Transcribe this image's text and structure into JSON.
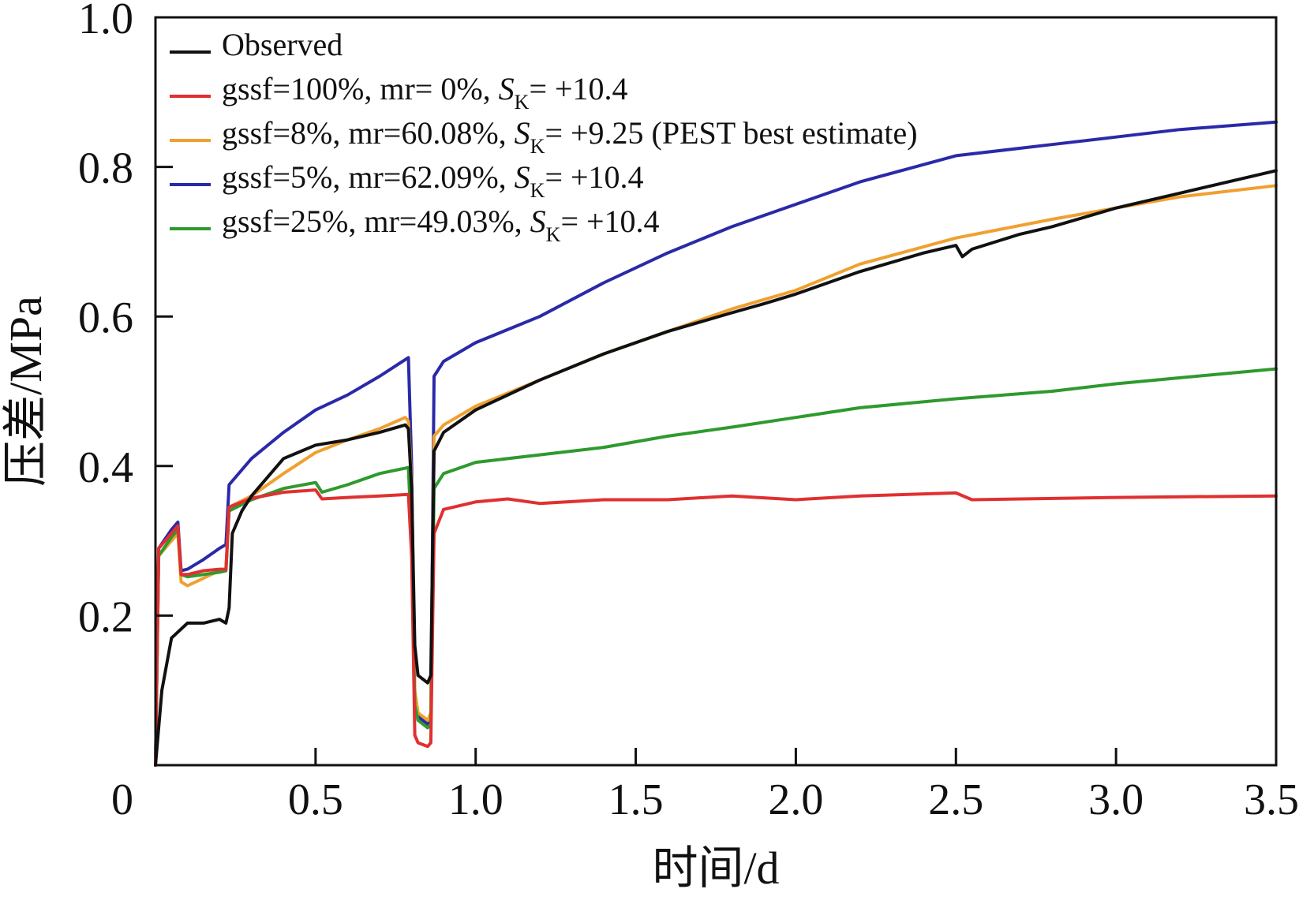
{
  "chart_data": {
    "type": "line",
    "title": "",
    "xlabel": "时间/d",
    "ylabel": "压差/MPa",
    "xlim": [
      0,
      3.5
    ],
    "ylim": [
      0,
      1.0
    ],
    "x_ticks": [
      0,
      0.5,
      1.0,
      1.5,
      2.0,
      2.5,
      3.0,
      3.5
    ],
    "x_tick_labels": [
      "0",
      "0.5",
      "1.0",
      "1.5",
      "2.0",
      "2.5",
      "3.0",
      "3.5"
    ],
    "y_ticks": [
      0.2,
      0.4,
      0.6,
      0.8,
      1.0
    ],
    "y_tick_labels": [
      "0.2",
      "0.4",
      "0.6",
      "0.8",
      "1.0"
    ],
    "grid": false,
    "legend_position": "top-left",
    "series": [
      {
        "name": "Observed",
        "legend": {
          "pre": "Observed",
          "sk_symbol": "",
          "sk_sub": "",
          "post": ""
        },
        "color": "#111111",
        "points": [
          [
            0.0,
            0.0
          ],
          [
            0.02,
            0.1
          ],
          [
            0.05,
            0.17
          ],
          [
            0.1,
            0.19
          ],
          [
            0.15,
            0.19
          ],
          [
            0.2,
            0.195
          ],
          [
            0.22,
            0.19
          ],
          [
            0.23,
            0.21
          ],
          [
            0.24,
            0.31
          ],
          [
            0.27,
            0.34
          ],
          [
            0.3,
            0.36
          ],
          [
            0.4,
            0.41
          ],
          [
            0.5,
            0.428
          ],
          [
            0.6,
            0.435
          ],
          [
            0.7,
            0.445
          ],
          [
            0.78,
            0.455
          ],
          [
            0.79,
            0.45
          ],
          [
            0.8,
            0.37
          ],
          [
            0.81,
            0.16
          ],
          [
            0.82,
            0.12
          ],
          [
            0.85,
            0.11
          ],
          [
            0.86,
            0.12
          ],
          [
            0.87,
            0.42
          ],
          [
            0.9,
            0.445
          ],
          [
            1.0,
            0.475
          ],
          [
            1.2,
            0.515
          ],
          [
            1.4,
            0.55
          ],
          [
            1.6,
            0.58
          ],
          [
            1.8,
            0.605
          ],
          [
            1.9,
            0.617
          ],
          [
            2.0,
            0.63
          ],
          [
            2.2,
            0.66
          ],
          [
            2.4,
            0.685
          ],
          [
            2.5,
            0.695
          ],
          [
            2.52,
            0.68
          ],
          [
            2.55,
            0.69
          ],
          [
            2.7,
            0.71
          ],
          [
            2.8,
            0.72
          ],
          [
            3.0,
            0.745
          ],
          [
            3.2,
            0.765
          ],
          [
            3.4,
            0.785
          ],
          [
            3.5,
            0.795
          ]
        ]
      },
      {
        "name": "gssf=100%, mr= 0%, SK= +10.4",
        "legend": {
          "pre": "gssf=100%, mr= 0%, ",
          "sk_symbol": "S",
          "sk_sub": "K",
          "post": "= +10.4"
        },
        "color": "#e03030",
        "points": [
          [
            0.0,
            0.0
          ],
          [
            0.01,
            0.29
          ],
          [
            0.05,
            0.31
          ],
          [
            0.07,
            0.32
          ],
          [
            0.08,
            0.255
          ],
          [
            0.1,
            0.255
          ],
          [
            0.15,
            0.26
          ],
          [
            0.2,
            0.262
          ],
          [
            0.22,
            0.262
          ],
          [
            0.23,
            0.345
          ],
          [
            0.3,
            0.357
          ],
          [
            0.4,
            0.365
          ],
          [
            0.5,
            0.368
          ],
          [
            0.52,
            0.356
          ],
          [
            0.6,
            0.358
          ],
          [
            0.7,
            0.36
          ],
          [
            0.79,
            0.362
          ],
          [
            0.8,
            0.28
          ],
          [
            0.81,
            0.04
          ],
          [
            0.82,
            0.03
          ],
          [
            0.85,
            0.025
          ],
          [
            0.86,
            0.03
          ],
          [
            0.87,
            0.31
          ],
          [
            0.9,
            0.342
          ],
          [
            1.0,
            0.352
          ],
          [
            1.1,
            0.356
          ],
          [
            1.2,
            0.35
          ],
          [
            1.4,
            0.355
          ],
          [
            1.6,
            0.355
          ],
          [
            1.8,
            0.36
          ],
          [
            2.0,
            0.355
          ],
          [
            2.2,
            0.36
          ],
          [
            2.5,
            0.364
          ],
          [
            2.55,
            0.355
          ],
          [
            3.0,
            0.358
          ],
          [
            3.5,
            0.36
          ]
        ]
      },
      {
        "name": "gssf=8%, mr=60.08%, SK= +9.25 (PEST best estimate)",
        "legend": {
          "pre": "gssf=8%, mr=60.08%, ",
          "sk_symbol": "S",
          "sk_sub": "K",
          "post": "= +9.25 (PEST best estimate)"
        },
        "color": "#f0a030",
        "points": [
          [
            0.0,
            0.0
          ],
          [
            0.01,
            0.28
          ],
          [
            0.05,
            0.3
          ],
          [
            0.07,
            0.31
          ],
          [
            0.08,
            0.245
          ],
          [
            0.1,
            0.24
          ],
          [
            0.15,
            0.25
          ],
          [
            0.2,
            0.26
          ],
          [
            0.22,
            0.262
          ],
          [
            0.23,
            0.345
          ],
          [
            0.3,
            0.36
          ],
          [
            0.4,
            0.39
          ],
          [
            0.5,
            0.418
          ],
          [
            0.6,
            0.435
          ],
          [
            0.7,
            0.45
          ],
          [
            0.78,
            0.465
          ],
          [
            0.79,
            0.46
          ],
          [
            0.8,
            0.38
          ],
          [
            0.81,
            0.1
          ],
          [
            0.82,
            0.07
          ],
          [
            0.85,
            0.06
          ],
          [
            0.86,
            0.07
          ],
          [
            0.87,
            0.44
          ],
          [
            0.9,
            0.455
          ],
          [
            1.0,
            0.48
          ],
          [
            1.2,
            0.515
          ],
          [
            1.4,
            0.55
          ],
          [
            1.6,
            0.58
          ],
          [
            1.8,
            0.61
          ],
          [
            2.0,
            0.635
          ],
          [
            2.2,
            0.67
          ],
          [
            2.5,
            0.705
          ],
          [
            2.8,
            0.73
          ],
          [
            3.0,
            0.745
          ],
          [
            3.2,
            0.76
          ],
          [
            3.5,
            0.775
          ]
        ]
      },
      {
        "name": "gssf=5%, mr=62.09%, SK= +10.4",
        "legend": {
          "pre": "gssf=5%, mr=62.09%, ",
          "sk_symbol": "S",
          "sk_sub": "K",
          "post": "= +10.4"
        },
        "color": "#2a2aa8",
        "points": [
          [
            0.0,
            0.0
          ],
          [
            0.01,
            0.29
          ],
          [
            0.05,
            0.315
          ],
          [
            0.07,
            0.325
          ],
          [
            0.08,
            0.26
          ],
          [
            0.1,
            0.262
          ],
          [
            0.15,
            0.275
          ],
          [
            0.2,
            0.29
          ],
          [
            0.22,
            0.295
          ],
          [
            0.23,
            0.375
          ],
          [
            0.3,
            0.41
          ],
          [
            0.4,
            0.445
          ],
          [
            0.5,
            0.475
          ],
          [
            0.6,
            0.495
          ],
          [
            0.7,
            0.52
          ],
          [
            0.79,
            0.545
          ],
          [
            0.8,
            0.4
          ],
          [
            0.81,
            0.09
          ],
          [
            0.82,
            0.065
          ],
          [
            0.85,
            0.055
          ],
          [
            0.86,
            0.06
          ],
          [
            0.87,
            0.52
          ],
          [
            0.9,
            0.54
          ],
          [
            1.0,
            0.565
          ],
          [
            1.2,
            0.6
          ],
          [
            1.4,
            0.645
          ],
          [
            1.6,
            0.685
          ],
          [
            1.8,
            0.72
          ],
          [
            2.0,
            0.75
          ],
          [
            2.2,
            0.78
          ],
          [
            2.5,
            0.815
          ],
          [
            2.8,
            0.83
          ],
          [
            3.0,
            0.84
          ],
          [
            3.2,
            0.85
          ],
          [
            3.5,
            0.86
          ]
        ]
      },
      {
        "name": "gssf=25%, mr=49.03%, SK= +10.4",
        "legend": {
          "pre": "gssf=25%, mr=49.03%, ",
          "sk_symbol": "S",
          "sk_sub": "K",
          "post": "= +10.4"
        },
        "color": "#2e9a2e",
        "points": [
          [
            0.0,
            0.0
          ],
          [
            0.01,
            0.28
          ],
          [
            0.05,
            0.305
          ],
          [
            0.07,
            0.315
          ],
          [
            0.08,
            0.255
          ],
          [
            0.1,
            0.252
          ],
          [
            0.15,
            0.255
          ],
          [
            0.2,
            0.258
          ],
          [
            0.22,
            0.26
          ],
          [
            0.23,
            0.34
          ],
          [
            0.3,
            0.355
          ],
          [
            0.4,
            0.37
          ],
          [
            0.5,
            0.378
          ],
          [
            0.52,
            0.365
          ],
          [
            0.6,
            0.375
          ],
          [
            0.7,
            0.39
          ],
          [
            0.79,
            0.398
          ],
          [
            0.8,
            0.3
          ],
          [
            0.81,
            0.08
          ],
          [
            0.82,
            0.06
          ],
          [
            0.85,
            0.05
          ],
          [
            0.86,
            0.055
          ],
          [
            0.87,
            0.37
          ],
          [
            0.9,
            0.39
          ],
          [
            1.0,
            0.405
          ],
          [
            1.2,
            0.415
          ],
          [
            1.4,
            0.425
          ],
          [
            1.6,
            0.44
          ],
          [
            1.8,
            0.452
          ],
          [
            2.0,
            0.465
          ],
          [
            2.2,
            0.478
          ],
          [
            2.5,
            0.49
          ],
          [
            2.8,
            0.5
          ],
          [
            3.0,
            0.51
          ],
          [
            3.2,
            0.518
          ],
          [
            3.5,
            0.53
          ]
        ]
      }
    ]
  }
}
